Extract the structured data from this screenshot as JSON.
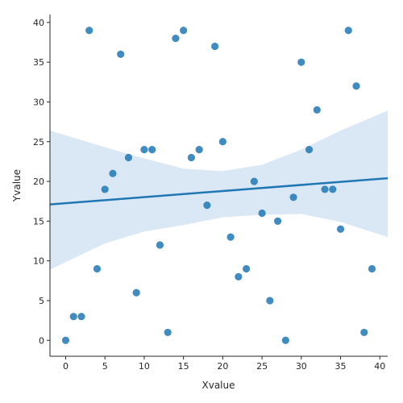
{
  "chart_data": {
    "type": "scatter",
    "title": "",
    "xlabel": "Xvalue",
    "ylabel": "Yvalue",
    "xlim": [
      -2,
      41
    ],
    "ylim": [
      -2,
      41
    ],
    "x_ticks": [
      0,
      5,
      10,
      15,
      20,
      25,
      30,
      35,
      40
    ],
    "y_ticks": [
      0,
      5,
      10,
      15,
      20,
      25,
      30,
      35,
      40
    ],
    "grid": false,
    "point_color": "#1f77b4",
    "regression": {
      "color": "#1f77b4",
      "band_color": "#aecde8",
      "line": [
        [
          -2,
          17.1
        ],
        [
          41,
          20.4
        ]
      ],
      "band_upper": [
        [
          -2,
          26.4
        ],
        [
          5,
          24.3
        ],
        [
          10,
          22.9
        ],
        [
          15,
          21.6
        ],
        [
          20,
          21.3
        ],
        [
          25,
          22.1
        ],
        [
          30,
          24.0
        ],
        [
          35,
          26.4
        ],
        [
          41,
          28.9
        ]
      ],
      "band_lower": [
        [
          -2,
          8.9
        ],
        [
          5,
          12.2
        ],
        [
          10,
          13.7
        ],
        [
          15,
          14.5
        ],
        [
          20,
          15.5
        ],
        [
          25,
          15.8
        ],
        [
          30,
          15.9
        ],
        [
          35,
          14.9
        ],
        [
          41,
          13.0
        ]
      ]
    },
    "series": [
      {
        "points": [
          [
            0,
            0
          ],
          [
            1,
            3
          ],
          [
            2,
            3
          ],
          [
            3,
            39
          ],
          [
            4,
            9
          ],
          [
            5,
            19
          ],
          [
            6,
            21
          ],
          [
            7,
            36
          ],
          [
            8,
            23
          ],
          [
            9,
            6
          ],
          [
            10,
            24
          ],
          [
            11,
            24
          ],
          [
            12,
            12
          ],
          [
            13,
            1
          ],
          [
            14,
            38
          ],
          [
            15,
            39
          ],
          [
            16,
            23
          ],
          [
            17,
            24
          ],
          [
            18,
            17
          ],
          [
            19,
            37
          ],
          [
            20,
            25
          ],
          [
            21,
            13
          ],
          [
            22,
            8
          ],
          [
            23,
            9
          ],
          [
            24,
            20
          ],
          [
            25,
            16
          ],
          [
            26,
            5
          ],
          [
            27,
            15
          ],
          [
            28,
            0
          ],
          [
            29,
            18
          ],
          [
            30,
            35
          ],
          [
            31,
            24
          ],
          [
            32,
            29
          ],
          [
            33,
            19
          ],
          [
            34,
            19
          ],
          [
            35,
            14
          ],
          [
            36,
            39
          ],
          [
            37,
            32
          ],
          [
            38,
            1
          ],
          [
            39,
            9
          ]
        ]
      }
    ]
  }
}
